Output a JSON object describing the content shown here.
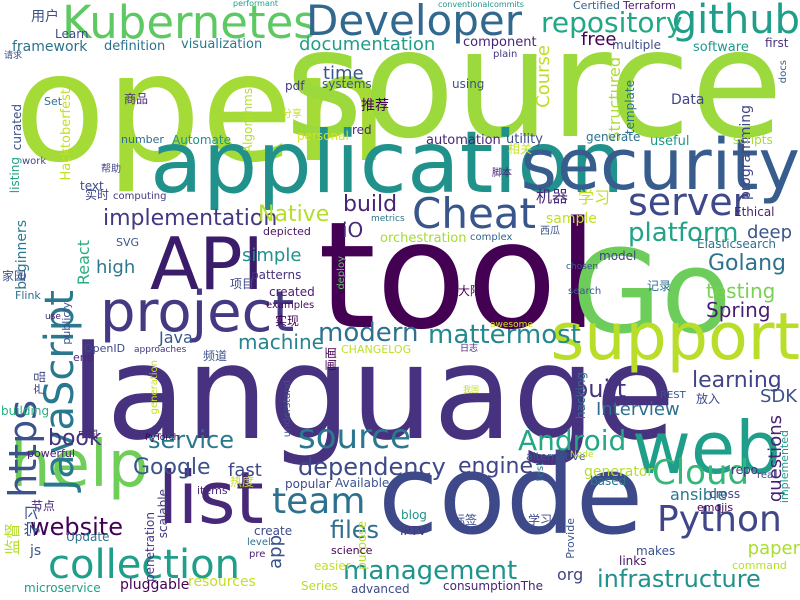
{
  "words": [
    {
      "id": "open",
      "text": "open",
      "color": "#a5db36"
    },
    {
      "id": "source_big",
      "text": "source",
      "color": "#9bd93c"
    },
    {
      "id": "tool",
      "text": "tool",
      "color": "#440154"
    },
    {
      "id": "language",
      "text": "language",
      "color": "#46327e"
    },
    {
      "id": "go",
      "text": "Go",
      "color": "#6ccd5a"
    },
    {
      "id": "code",
      "text": "code",
      "color": "#3e4989"
    },
    {
      "id": "application",
      "text": "application",
      "color": "#21918c"
    },
    {
      "id": "security",
      "text": "security",
      "color": "#365d8d"
    },
    {
      "id": "web",
      "text": "web",
      "color": "#1f9e89"
    },
    {
      "id": "support",
      "text": "support",
      "color": "#b8de29"
    },
    {
      "id": "list",
      "text": "list",
      "color": "#482878"
    },
    {
      "id": "api",
      "text": "API",
      "color": "#3b1c6b"
    },
    {
      "id": "project",
      "text": "project",
      "color": "#443983"
    },
    {
      "id": "help",
      "text": "help",
      "color": "#6ece58"
    },
    {
      "id": "kubernetes",
      "text": "Kubernetes",
      "color": "#5ec962"
    },
    {
      "id": "developer",
      "text": "Developer",
      "color": "#31688e"
    },
    {
      "id": "github",
      "text": "github",
      "color": "#1f9e89"
    },
    {
      "id": "cheat",
      "text": "Cheat",
      "color": "#39568c"
    },
    {
      "id": "server",
      "text": "server",
      "color": "#3e4989"
    },
    {
      "id": "javascript",
      "text": "JavaScript",
      "color": "#2a788e"
    },
    {
      "id": "https",
      "text": "https",
      "color": "#3b528b"
    },
    {
      "id": "source_mid",
      "text": "source",
      "color": "#2a788e"
    },
    {
      "id": "collection",
      "text": "collection",
      "color": "#1f9e89"
    },
    {
      "id": "team",
      "text": "team",
      "color": "#2c728e"
    },
    {
      "id": "python",
      "text": "Python",
      "color": "#404688"
    },
    {
      "id": "cloud",
      "text": "Cloud",
      "color": "#35b779"
    },
    {
      "id": "android",
      "text": "Android",
      "color": "#22a884"
    },
    {
      "id": "repository",
      "text": "repository",
      "color": "#22a884"
    },
    {
      "id": "platform",
      "text": "platform",
      "color": "#20a386"
    },
    {
      "id": "modern",
      "text": "modern",
      "color": "#2c728e"
    },
    {
      "id": "mattermost",
      "text": "mattermost",
      "color": "#23898e"
    },
    {
      "id": "management",
      "text": "management",
      "color": "#1f948c"
    },
    {
      "id": "infrastructure",
      "text": "infrastructure",
      "color": "#21918c"
    },
    {
      "id": "dependency",
      "text": "dependency",
      "color": "#3e4989"
    },
    {
      "id": "service",
      "text": "service",
      "color": "#2a788e"
    },
    {
      "id": "website",
      "text": "website",
      "color": "#440154"
    },
    {
      "id": "files",
      "text": "files",
      "color": "#2d708e"
    },
    {
      "id": "implementation",
      "text": "implementation",
      "color": "#453781"
    },
    {
      "id": "documentation",
      "text": "documentation",
      "color": "#1f9e89"
    },
    {
      "id": "build",
      "text": "build",
      "color": "#482475"
    },
    {
      "id": "native",
      "text": "Native",
      "color": "#b5de2b"
    },
    {
      "id": "learning",
      "text": "learning",
      "color": "#414487"
    },
    {
      "id": "google",
      "text": "Google",
      "color": "#3b528b"
    },
    {
      "id": "engine",
      "text": "engine",
      "color": "#414487"
    },
    {
      "id": "book",
      "text": "book",
      "color": "#46327e"
    },
    {
      "id": "golang",
      "text": "Golang",
      "color": "#2c728e"
    },
    {
      "id": "testing",
      "text": "testing",
      "color": "#7ad151"
    },
    {
      "id": "spring",
      "text": "Spring",
      "color": "#481f70"
    },
    {
      "id": "built",
      "text": "built",
      "color": "#46327e"
    },
    {
      "id": "interview",
      "text": "Interview",
      "color": "#2d708e"
    },
    {
      "id": "sdk",
      "text": "SDK",
      "color": "#3b528b"
    },
    {
      "id": "machine",
      "text": "machine",
      "color": "#25848e"
    },
    {
      "id": "simple",
      "text": "simple",
      "color": "#21918c"
    },
    {
      "id": "high",
      "text": "high",
      "color": "#2a788e"
    },
    {
      "id": "react",
      "text": "React",
      "color": "#27ad81"
    },
    {
      "id": "io",
      "text": "iO",
      "color": "#482878"
    },
    {
      "id": "time",
      "text": "time",
      "color": "#39568c"
    },
    {
      "id": "free",
      "text": "free",
      "color": "#440154"
    },
    {
      "id": "course",
      "text": "Course",
      "color": "#bddf26"
    },
    {
      "id": "paper",
      "text": "paper",
      "color": "#aadc32"
    },
    {
      "id": "ansible",
      "text": "ansible",
      "color": "#2a788e"
    },
    {
      "id": "fast",
      "text": "fast",
      "color": "#3f4788"
    },
    {
      "id": "java",
      "text": "Java",
      "color": "#39568c"
    },
    {
      "id": "app",
      "text": "app",
      "color": "#3b528b"
    },
    {
      "id": "questions",
      "text": "questions",
      "color": "#482173"
    },
    {
      "id": "deep",
      "text": "deep",
      "color": "#3a548c"
    },
    {
      "id": "framework",
      "text": "framework",
      "color": "#2c728e"
    },
    {
      "id": "definition",
      "text": "definition",
      "color": "#2c728e"
    },
    {
      "id": "visualization",
      "text": "visualization",
      "color": "#2a788e"
    },
    {
      "id": "component",
      "text": "component",
      "color": "#482576"
    },
    {
      "id": "software",
      "text": "software",
      "color": "#1f9a8a"
    },
    {
      "id": "multiple",
      "text": "multiple",
      "color": "#3e4c8a"
    },
    {
      "id": "first",
      "text": "first",
      "color": "#46337f"
    },
    {
      "id": "learn",
      "text": "Learn",
      "color": "#3e4c8a"
    },
    {
      "id": "terraform",
      "text": "Terraform",
      "color": "#481c6e"
    },
    {
      "id": "certified",
      "text": "Certified",
      "color": "#33638d"
    },
    {
      "id": "performant",
      "text": "performant",
      "color": "#1fa187"
    },
    {
      "id": "conventionalcommits",
      "text": "conventionalcommits",
      "color": "#1f968b"
    },
    {
      "id": "plain",
      "text": "plain",
      "color": "#453882"
    },
    {
      "id": "data",
      "text": "Data",
      "color": "#3f4788"
    },
    {
      "id": "programming",
      "text": "programming",
      "color": "#404688"
    },
    {
      "id": "docs",
      "text": "docs",
      "color": "#365c8d"
    },
    {
      "id": "structured",
      "text": "Structured",
      "color": "#addc30"
    },
    {
      "id": "template",
      "text": "template",
      "color": "#2d708e"
    },
    {
      "id": "useful",
      "text": "useful",
      "color": "#1f968b"
    },
    {
      "id": "scripts",
      "text": "scripts",
      "color": "#a8db34"
    },
    {
      "id": "generate",
      "text": "generate",
      "color": "#2e6f8e"
    },
    {
      "id": "utility",
      "text": "utility",
      "color": "#3d4d8a"
    },
    {
      "id": "automation",
      "text": "automation",
      "color": "#482475"
    },
    {
      "id": "using",
      "text": "using",
      "color": "#3b528b"
    },
    {
      "id": "systems",
      "text": "systems",
      "color": "#39568c"
    },
    {
      "id": "pdf",
      "text": "pdf",
      "color": "#443983"
    },
    {
      "id": "red",
      "text": "red",
      "color": "#482878"
    },
    {
      "id": "personal",
      "text": "personal",
      "color": "#d8e219"
    },
    {
      "id": "automate",
      "text": "Automate",
      "color": "#1f948c"
    },
    {
      "id": "algorithms",
      "text": "Algorithms",
      "color": "#b5de2b"
    },
    {
      "id": "number",
      "text": "number",
      "color": "#2e6d8e"
    },
    {
      "id": "set",
      "text": "Set",
      "color": "#2d718e"
    },
    {
      "id": "curated",
      "text": "curated",
      "color": "#3b528b"
    },
    {
      "id": "listing",
      "text": "listing",
      "color": "#20a386"
    },
    {
      "id": "work",
      "text": "work",
      "color": "#404688"
    },
    {
      "id": "hacktoberfest",
      "text": "Hacktoberfest",
      "color": "#c2df23"
    },
    {
      "id": "computing",
      "text": "computing",
      "color": "#453882"
    },
    {
      "id": "text",
      "text": "text",
      "color": "#3e4989"
    },
    {
      "id": "svg",
      "text": "SVG",
      "color": "#3a548c"
    },
    {
      "id": "beginners",
      "text": "beginners",
      "color": "#2a788e"
    },
    {
      "id": "depicted",
      "text": "depicted",
      "color": "#471164"
    },
    {
      "id": "patterns",
      "text": "patterns",
      "color": "#46327e"
    },
    {
      "id": "created",
      "text": "created",
      "color": "#481a6c"
    },
    {
      "id": "examples",
      "text": "examples",
      "color": "#46085c"
    },
    {
      "id": "deploy",
      "text": "deploy",
      "color": "#5ec962"
    },
    {
      "id": "metrics",
      "text": "metrics",
      "color": "#2a788e"
    },
    {
      "id": "orchestration",
      "text": "orchestration",
      "color": "#a5db36"
    },
    {
      "id": "complex",
      "text": "complex",
      "color": "#33638d"
    },
    {
      "id": "sample",
      "text": "sample",
      "color": "#bddf26"
    },
    {
      "id": "ethical",
      "text": "Ethical",
      "color": "#481f70"
    },
    {
      "id": "elasticsearch",
      "text": "Elasticsearch",
      "color": "#2c728e"
    },
    {
      "id": "model",
      "text": "model",
      "color": "#414487"
    },
    {
      "id": "chosen",
      "text": "chosen",
      "color": "#3b528b"
    },
    {
      "id": "search",
      "text": "search",
      "color": "#39568c"
    },
    {
      "id": "flink",
      "text": "Flink",
      "color": "#2e6f8e"
    },
    {
      "id": "use",
      "text": "use",
      "color": "#482475"
    },
    {
      "id": "publicly",
      "text": "publicly",
      "color": "#3b528b"
    },
    {
      "id": "openid",
      "text": "OpenID",
      "color": "#3e4989"
    },
    {
      "id": "approaches",
      "text": "approaches",
      "color": "#46337f"
    },
    {
      "id": "end",
      "text": "end",
      "color": "#482878"
    },
    {
      "id": "changelog",
      "text": "CHANGELOG",
      "color": "#bddf26"
    },
    {
      "id": "awesome",
      "text": "awesome",
      "color": "#d2e21b"
    },
    {
      "id": "hacking",
      "text": "hacking",
      "color": "#2e6e8e"
    },
    {
      "id": "rest",
      "text": "REST",
      "color": "#3a548c"
    },
    {
      "id": "implemented",
      "text": "implemented",
      "color": "#1f9e89"
    },
    {
      "id": "generation",
      "text": "generation",
      "color": "#c8e020"
    },
    {
      "id": "building",
      "text": "building",
      "color": "#27ad81"
    },
    {
      "id": "powerful",
      "text": "powerful",
      "color": "#482173"
    },
    {
      "id": "pytorch",
      "text": "PyTorch",
      "color": "#440154"
    },
    {
      "id": "understand",
      "text": "understand",
      "color": "#3b528b"
    },
    {
      "id": "popular",
      "text": "popular",
      "color": "#3e4989"
    },
    {
      "id": "alternative",
      "text": "alternative",
      "color": "#3b528b"
    },
    {
      "id": "test",
      "text": "test",
      "color": "#2e6d8e"
    },
    {
      "id": "node",
      "text": "Node",
      "color": "#bddf26"
    },
    {
      "id": "generator",
      "text": "generator",
      "color": "#b5de2b"
    },
    {
      "id": "repo",
      "text": "repo",
      "color": "#46327e"
    },
    {
      "id": "real",
      "text": "real",
      "color": "#414487"
    },
    {
      "id": "based",
      "text": "based",
      "color": "#2a788e"
    },
    {
      "id": "cross",
      "text": "cross",
      "color": "#414487"
    },
    {
      "id": "emojis",
      "text": "emojis",
      "color": "#440154"
    },
    {
      "id": "command",
      "text": "command",
      "color": "#b5de2b"
    },
    {
      "id": "links",
      "text": "links",
      "color": "#471365"
    },
    {
      "id": "makes",
      "text": "makes",
      "color": "#3b528b"
    },
    {
      "id": "provide",
      "text": "Provide",
      "color": "#3a548c"
    },
    {
      "id": "blog",
      "text": "blog",
      "color": "#21918c"
    },
    {
      "id": "iptv",
      "text": "IPTV",
      "color": "#443983"
    },
    {
      "id": "items",
      "text": "items",
      "color": "#482677"
    },
    {
      "id": "available",
      "text": "Available",
      "color": "#3b528b"
    },
    {
      "id": "purpose",
      "text": "purpose",
      "color": "#b5de2b"
    },
    {
      "id": "science",
      "text": "science",
      "color": "#440154"
    },
    {
      "id": "scalable",
      "text": "scalable",
      "color": "#453781"
    },
    {
      "id": "penetration",
      "text": "penetration",
      "color": "#453882"
    },
    {
      "id": "level",
      "text": "level",
      "color": "#2c728e"
    },
    {
      "id": "pre",
      "text": "pre",
      "color": "#482475"
    },
    {
      "id": "create",
      "text": "create",
      "color": "#3e4989"
    },
    {
      "id": "easier",
      "text": "easier",
      "color": "#c2df23"
    },
    {
      "id": "series",
      "text": "Series",
      "color": "#b8de29"
    },
    {
      "id": "advanced",
      "text": "advanced",
      "color": "#3e4989"
    },
    {
      "id": "consumptionthe",
      "text": "consumptionThe",
      "color": "#482475"
    },
    {
      "id": "update",
      "text": "Update",
      "color": "#2c728e"
    },
    {
      "id": "js",
      "text": "js",
      "color": "#3b528b"
    },
    {
      "id": "microservice",
      "text": "microservice",
      "color": "#1f9e89"
    },
    {
      "id": "pluggable",
      "text": "pluggable",
      "color": "#440154"
    },
    {
      "id": "resources",
      "text": "resources",
      "color": "#c2df23"
    },
    {
      "id": "org",
      "text": "org",
      "color": "#414487"
    },
    {
      "id": "yonghu",
      "text": "用户",
      "color": "#3b528b"
    },
    {
      "id": "qingqiu",
      "text": "请求",
      "color": "#3e4989"
    },
    {
      "id": "shangpin",
      "text": "商品",
      "color": "#482878"
    },
    {
      "id": "tuijian",
      "text": "推荐",
      "color": "#440154"
    },
    {
      "id": "fenxiang",
      "text": "分享",
      "color": "#c2df23"
    },
    {
      "id": "bangzhu",
      "text": "帮助",
      "color": "#414487"
    },
    {
      "id": "shishi",
      "text": "实时",
      "color": "#3e4989"
    },
    {
      "id": "xiangguan",
      "text": "相关",
      "color": "#c8e020"
    },
    {
      "id": "jiaoben",
      "text": "脚本",
      "color": "#482475"
    },
    {
      "id": "jiqi",
      "text": "机器",
      "color": "#482878"
    },
    {
      "id": "xuexi_a",
      "text": "学习",
      "color": "#c2df23"
    },
    {
      "id": "xigua",
      "text": "西瓜",
      "color": "#3b528b"
    },
    {
      "id": "jiayuan",
      "text": "家园",
      "color": "#3b528b"
    },
    {
      "id": "xiangmu",
      "text": "项目",
      "color": "#3e4989"
    },
    {
      "id": "dalu",
      "text": "大陆",
      "color": "#440154"
    },
    {
      "id": "jilu",
      "text": "记录",
      "color": "#2c728e"
    },
    {
      "id": "shixian",
      "text": "实现",
      "color": "#440154"
    },
    {
      "id": "pindao",
      "text": "频道",
      "color": "#3b528b"
    },
    {
      "id": "huamian",
      "text": "画面",
      "color": "#440154"
    },
    {
      "id": "rizhi",
      "text": "日志",
      "color": "#482475"
    },
    {
      "id": "chanpin",
      "text": "产品",
      "color": "#414487"
    },
    {
      "id": "wowguo",
      "text": "我国",
      "color": "#c2df23"
    },
    {
      "id": "zhongguo",
      "text": "中国",
      "color": "#482878"
    },
    {
      "id": "fangru",
      "text": "放入",
      "color": "#3e4989"
    },
    {
      "id": "redu",
      "text": "热度",
      "color": "#c8e020"
    },
    {
      "id": "jiedian",
      "text": "节点",
      "color": "#482475"
    },
    {
      "id": "jiandu",
      "text": "监督",
      "color": "#b5de2b"
    },
    {
      "id": "xuexi_b",
      "text": "学习",
      "color": "#3b528b"
    },
    {
      "id": "biaoqian",
      "text": "标签",
      "color": "#3e4989"
    },
    {
      "id": "xuexi_c",
      "text": "学习",
      "color": "#3e4989"
    }
  ]
}
